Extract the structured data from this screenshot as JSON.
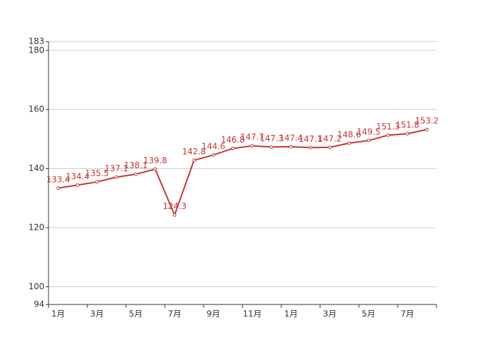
{
  "chart_data": {
    "type": "line",
    "categories": [
      "1月",
      null,
      "3月",
      null,
      "5月",
      null,
      "7月",
      null,
      "9月",
      null,
      "11月",
      null,
      "1月",
      null,
      "3月",
      null,
      "5月",
      null,
      "7月",
      null
    ],
    "series": [
      {
        "color": "#c23531",
        "values": [
          133.4,
          134.4,
          135.5,
          137.1,
          138.1,
          139.8,
          124.3,
          142.8,
          144.6,
          146.8,
          147.7,
          147.3,
          147.4,
          147.1,
          147.2,
          148.6,
          149.5,
          151.3,
          151.8,
          153.2
        ]
      }
    ],
    "ylim": [
      94,
      183
    ],
    "yticks": [
      94,
      100,
      120,
      140,
      160,
      180,
      183
    ],
    "grid": true
  }
}
